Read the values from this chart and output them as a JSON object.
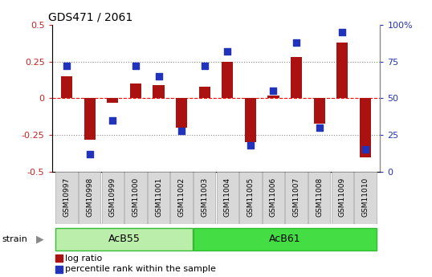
{
  "title": "GDS471 / 2061",
  "samples": [
    "GSM10997",
    "GSM10998",
    "GSM10999",
    "GSM11000",
    "GSM11001",
    "GSM11002",
    "GSM11003",
    "GSM11004",
    "GSM11005",
    "GSM11006",
    "GSM11007",
    "GSM11008",
    "GSM11009",
    "GSM11010"
  ],
  "log_ratio": [
    0.15,
    -0.28,
    -0.03,
    0.1,
    0.09,
    -0.2,
    0.08,
    0.25,
    -0.3,
    0.02,
    0.28,
    -0.17,
    0.38,
    -0.4
  ],
  "percentile_rank": [
    72,
    12,
    35,
    72,
    65,
    28,
    72,
    82,
    18,
    55,
    88,
    30,
    95,
    15
  ],
  "ylim_left": [
    -0.5,
    0.5
  ],
  "ylim_right": [
    0,
    100
  ],
  "yticks_left": [
    -0.5,
    -0.25,
    0.0,
    0.25,
    0.5
  ],
  "yticks_right": [
    0,
    25,
    50,
    75,
    100
  ],
  "hlines_dotted": [
    0.25,
    -0.25
  ],
  "hline_dashed": 0.0,
  "bar_color": "#aa1111",
  "dot_color": "#2233bb",
  "bar_width": 0.5,
  "dot_size": 40,
  "left_tick_color": "#cc2222",
  "right_tick_color": "#2233bb",
  "strain_groups": [
    {
      "label": "AcB55",
      "start": 0,
      "end": 5,
      "color": "#bbeeaa"
    },
    {
      "label": "AcB61",
      "start": 6,
      "end": 13,
      "color": "#44dd44"
    }
  ],
  "legend_items": [
    "log ratio",
    "percentile rank within the sample"
  ],
  "legend_colors": [
    "#aa1111",
    "#2233bb"
  ]
}
